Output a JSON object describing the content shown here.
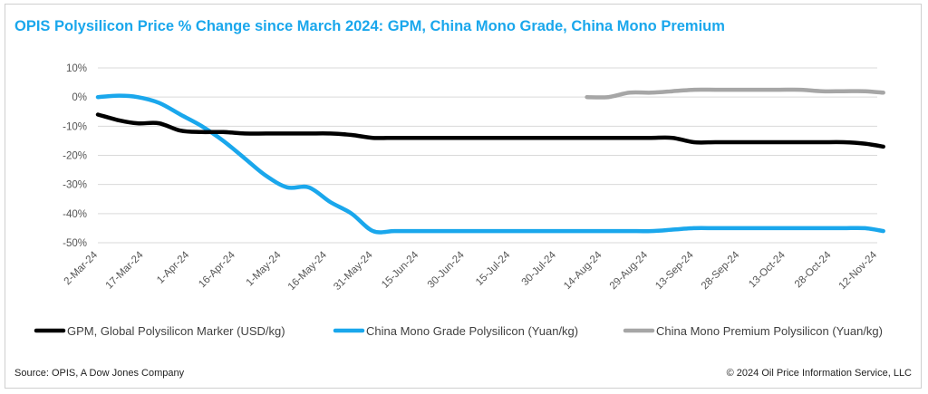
{
  "chart_data": {
    "type": "line",
    "title": "OPIS  Polysilicon Price %  Change since March 2024: GPM, China Mono Grade, China Mono Premium",
    "xlabel": "",
    "ylabel": "",
    "x_ticks": [
      "2-Mar-24",
      "17-Mar-24",
      "1-Apr-24",
      "16-Apr-24",
      "1-May-24",
      "16-May-24",
      "31-May-24",
      "15-Jun-24",
      "30-Jun-24",
      "15-Jul-24",
      "30-Jul-24",
      "14-Aug-24",
      "29-Aug-24",
      "13-Sep-24",
      "28-Sep-24",
      "13-Oct-24",
      "28-Oct-24",
      "12-Nov-24"
    ],
    "y_ticks": [
      "10%",
      "0%",
      "-10%",
      "-20%",
      "-30%",
      "-40%",
      "-50%"
    ],
    "ylim": [
      -50,
      10
    ],
    "grid": "horizontal",
    "legend_position": "bottom",
    "series": [
      {
        "name": "GPM, Global Polysilicon Marker (USD/kg)",
        "color": "#000000",
        "points": [
          [
            "2-Mar-24",
            -6
          ],
          [
            "9-Mar-24",
            -8
          ],
          [
            "15-Mar-24",
            -9
          ],
          [
            "22-Mar-24",
            -9
          ],
          [
            "29-Mar-24",
            -11.5
          ],
          [
            "5-Apr-24",
            -12
          ],
          [
            "12-Apr-24",
            -12
          ],
          [
            "19-Apr-24",
            -12.5
          ],
          [
            "26-Apr-24",
            -12.5
          ],
          [
            "3-May-24",
            -12.5
          ],
          [
            "10-May-24",
            -12.5
          ],
          [
            "17-May-24",
            -12.5
          ],
          [
            "24-May-24",
            -13
          ],
          [
            "31-May-24",
            -14
          ],
          [
            "7-Jun-24",
            -14
          ],
          [
            "14-Jun-24",
            -14
          ],
          [
            "21-Jun-24",
            -14
          ],
          [
            "28-Jun-24",
            -14
          ],
          [
            "5-Jul-24",
            -14
          ],
          [
            "12-Jul-24",
            -14
          ],
          [
            "19-Jul-24",
            -14
          ],
          [
            "26-Jul-24",
            -14
          ],
          [
            "2-Aug-24",
            -14
          ],
          [
            "9-Aug-24",
            -14
          ],
          [
            "16-Aug-24",
            -14
          ],
          [
            "23-Aug-24",
            -14
          ],
          [
            "30-Aug-24",
            -14
          ],
          [
            "6-Sep-24",
            -14
          ],
          [
            "13-Sep-24",
            -15.5
          ],
          [
            "20-Sep-24",
            -15.5
          ],
          [
            "27-Sep-24",
            -15.5
          ],
          [
            "4-Oct-24",
            -15.5
          ],
          [
            "11-Oct-24",
            -15.5
          ],
          [
            "18-Oct-24",
            -15.5
          ],
          [
            "25-Oct-24",
            -15.5
          ],
          [
            "1-Nov-24",
            -15.5
          ],
          [
            "8-Nov-24",
            -16
          ],
          [
            "14-Nov-24",
            -17
          ]
        ]
      },
      {
        "name": "China Mono Grade Polysilicon (Yuan/kg)",
        "color": "#1aa7ec",
        "points": [
          [
            "2-Mar-24",
            0
          ],
          [
            "9-Mar-24",
            0.5
          ],
          [
            "15-Mar-24",
            0
          ],
          [
            "22-Mar-24",
            -2
          ],
          [
            "29-Mar-24",
            -6
          ],
          [
            "5-Apr-24",
            -10
          ],
          [
            "12-Apr-24",
            -15
          ],
          [
            "19-Apr-24",
            -21
          ],
          [
            "26-Apr-24",
            -27
          ],
          [
            "3-May-24",
            -31
          ],
          [
            "10-May-24",
            -31
          ],
          [
            "17-May-24",
            -36
          ],
          [
            "24-May-24",
            -40
          ],
          [
            "31-May-24",
            -46
          ],
          [
            "7-Jun-24",
            -46
          ],
          [
            "14-Jun-24",
            -46
          ],
          [
            "21-Jun-24",
            -46
          ],
          [
            "28-Jun-24",
            -46
          ],
          [
            "5-Jul-24",
            -46
          ],
          [
            "12-Jul-24",
            -46
          ],
          [
            "19-Jul-24",
            -46
          ],
          [
            "26-Jul-24",
            -46
          ],
          [
            "2-Aug-24",
            -46
          ],
          [
            "9-Aug-24",
            -46
          ],
          [
            "16-Aug-24",
            -46
          ],
          [
            "23-Aug-24",
            -46
          ],
          [
            "30-Aug-24",
            -46
          ],
          [
            "6-Sep-24",
            -45.5
          ],
          [
            "13-Sep-24",
            -45
          ],
          [
            "20-Sep-24",
            -45
          ],
          [
            "27-Sep-24",
            -45
          ],
          [
            "4-Oct-24",
            -45
          ],
          [
            "11-Oct-24",
            -45
          ],
          [
            "18-Oct-24",
            -45
          ],
          [
            "25-Oct-24",
            -45
          ],
          [
            "1-Nov-24",
            -45
          ],
          [
            "8-Nov-24",
            -45
          ],
          [
            "14-Nov-24",
            -46
          ]
        ]
      },
      {
        "name": "China Mono Premium Polysilicon (Yuan/kg)",
        "color": "#a6a6a6",
        "points": [
          [
            "9-Aug-24",
            0
          ],
          [
            "16-Aug-24",
            0
          ],
          [
            "23-Aug-24",
            1.5
          ],
          [
            "30-Aug-24",
            1.5
          ],
          [
            "6-Sep-24",
            2
          ],
          [
            "13-Sep-24",
            2.5
          ],
          [
            "20-Sep-24",
            2.5
          ],
          [
            "27-Sep-24",
            2.5
          ],
          [
            "4-Oct-24",
            2.5
          ],
          [
            "11-Oct-24",
            2.5
          ],
          [
            "18-Oct-24",
            2.5
          ],
          [
            "25-Oct-24",
            2
          ],
          [
            "1-Nov-24",
            2
          ],
          [
            "8-Nov-24",
            2
          ],
          [
            "14-Nov-24",
            1.5
          ]
        ]
      }
    ]
  },
  "footer": {
    "source": "Source: OPIS, A Dow Jones Company",
    "copyright": "© 2024 Oil Price Information Service, LLC"
  }
}
